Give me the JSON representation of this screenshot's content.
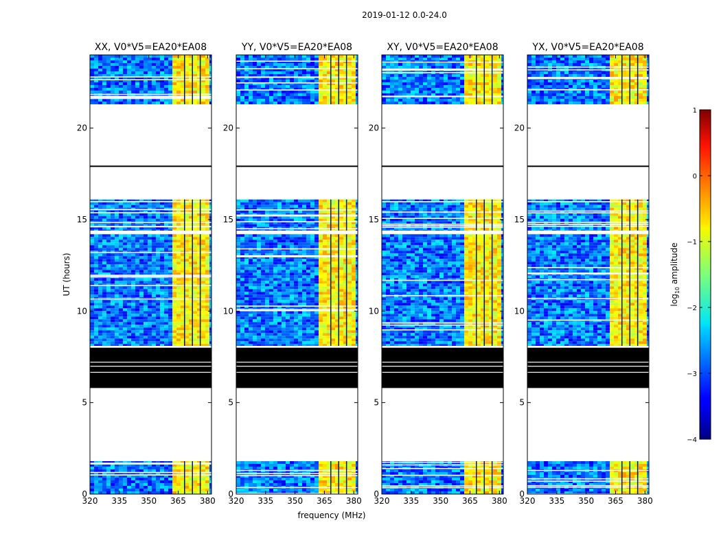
{
  "chart_data": {
    "type": "heatmap",
    "suptitle": "2019-01-12 0.0-24.0",
    "xlabel": "frequency (MHz)",
    "ylabel": "UT (hours)",
    "xlim": [
      320,
      382
    ],
    "ylim": [
      0,
      24
    ],
    "xticks": [
      320,
      335,
      350,
      365,
      380
    ],
    "xtick_labels": [
      "320",
      "335",
      "350",
      "365",
      "380"
    ],
    "yticks": [
      0,
      5,
      10,
      15,
      20
    ],
    "ytick_labels": [
      "0",
      "5",
      "10",
      "15",
      "20"
    ],
    "panels": [
      {
        "title": "XX, V0*V5=EA20*EA08"
      },
      {
        "title": "YY, V0*V5=EA20*EA08"
      },
      {
        "title": "XY, V0*V5=EA20*EA08"
      },
      {
        "title": "YX, V0*V5=EA20*EA08"
      }
    ],
    "colorbar": {
      "label": "log",
      "label_sub": "10",
      "label_rest": " amplitude",
      "range": [
        -4,
        1
      ],
      "colormap": "jet",
      "ticks": [
        1,
        0,
        -1,
        -2,
        -3,
        -4
      ],
      "tick_labels": [
        "1",
        "0",
        "−1",
        "−2",
        "−3",
        "−4"
      ]
    },
    "data_blocks_hours": [
      [
        0,
        1.8
      ],
      [
        8.1,
        14.2
      ],
      [
        14.4,
        16.1
      ],
      [
        21.3,
        24
      ]
    ],
    "flagged_black_blocks_hours": [
      [
        5.8,
        8.0
      ]
    ],
    "rfi_band_mhz": [
      361.5,
      380.5
    ],
    "rfi_level": -0.9,
    "background_level": -2.8
  }
}
